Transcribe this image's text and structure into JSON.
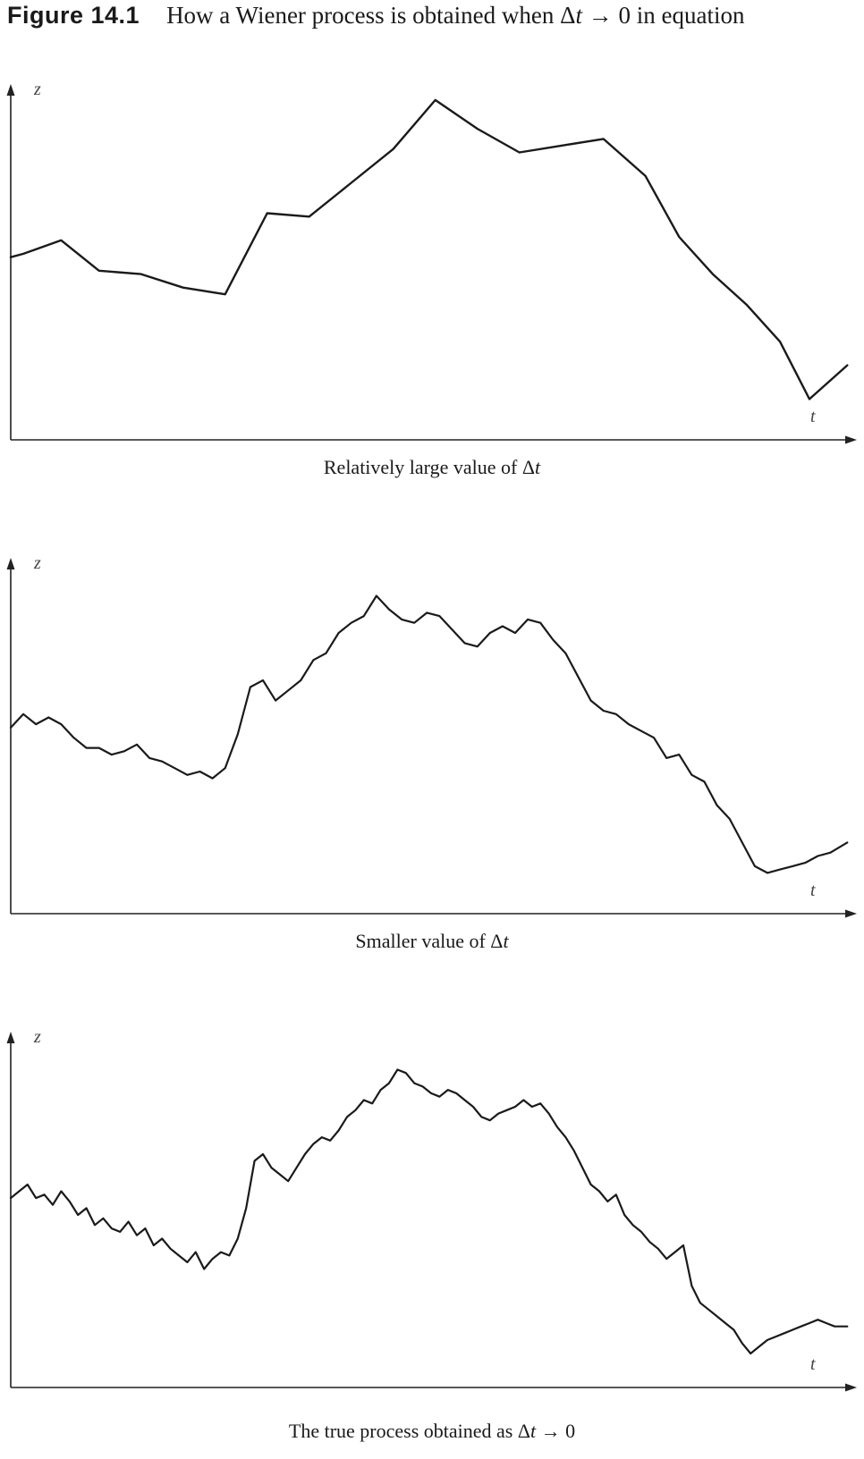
{
  "figure": {
    "label": "Figure 14.1",
    "title_prefix": "How a Wiener process is obtained when Δ",
    "title_var": "t",
    "title_suffix": " → 0 in equation"
  },
  "chart_data": [
    {
      "type": "line",
      "xlabel": "t",
      "ylabel": "z",
      "caption": {
        "text": "Relatively large value of Δ",
        "var": "t",
        "suffix": ""
      },
      "xlim": [
        0,
        100
      ],
      "ylim": [
        0,
        100
      ],
      "series": [
        {
          "x": [
            0,
            1.5,
            6,
            10.5,
            15.5,
            20.5,
            25.5,
            30.5,
            35.5,
            40.5,
            45.5,
            50.5,
            55.5,
            60.5,
            65.5,
            70.5,
            75.5,
            79.5,
            83.5,
            87.5,
            91.5,
            95,
            99.5
          ],
          "y": [
            53,
            54,
            58,
            49,
            48,
            44,
            42,
            66,
            65,
            75,
            85,
            99.5,
            91,
            84,
            86,
            88,
            77,
            59,
            48,
            39,
            28,
            11,
            21
          ]
        }
      ]
    },
    {
      "type": "line",
      "xlabel": "t",
      "ylabel": "z",
      "caption": {
        "text": "Smaller value of Δ",
        "var": "t",
        "suffix": ""
      },
      "xlim": [
        0,
        100
      ],
      "ylim": [
        0,
        100
      ],
      "series": [
        {
          "x": [
            0,
            1.5,
            3,
            4.5,
            6,
            7.5,
            9,
            10.5,
            12,
            13.5,
            15,
            16.5,
            18,
            19.5,
            21,
            22.5,
            24,
            25.5,
            27,
            28.5,
            30,
            31.5,
            33,
            34.5,
            36,
            37.5,
            39,
            40.5,
            42,
            43.5,
            45,
            46.5,
            48,
            49.5,
            51,
            52.5,
            54,
            55.5,
            57,
            58.5,
            60,
            61.5,
            63,
            64.5,
            66,
            67.5,
            69,
            70.5,
            72,
            73.5,
            75,
            76.5,
            78,
            79.5,
            81,
            82.5,
            84,
            85.5,
            87,
            88.5,
            90,
            91.5,
            93,
            94.5,
            96,
            97.5,
            99.5
          ],
          "y": [
            54,
            58,
            55,
            57,
            55,
            51,
            48,
            48,
            46,
            47,
            49,
            45,
            44,
            42,
            40,
            41,
            39,
            42,
            52,
            66,
            68,
            62,
            65,
            68,
            74,
            76,
            82,
            85,
            87,
            93,
            89,
            86,
            85,
            88,
            87,
            83,
            79,
            78,
            82,
            84,
            82,
            86,
            85,
            80,
            76,
            69,
            62,
            59,
            58,
            55,
            53,
            51,
            45,
            46,
            40,
            38,
            31,
            27,
            20,
            13,
            11,
            12,
            13,
            14,
            16,
            17,
            20
          ]
        }
      ]
    },
    {
      "type": "line",
      "xlabel": "t",
      "ylabel": "z",
      "caption": {
        "text": "The true process obtained as Δ",
        "var": "t",
        "suffix": " → 0"
      },
      "xlim": [
        0,
        100
      ],
      "ylim": [
        0,
        100
      ],
      "series": [
        {
          "x": [
            0,
            1,
            2,
            3,
            4,
            5,
            6,
            7,
            8,
            9,
            10,
            11,
            12,
            13,
            14,
            15,
            16,
            17,
            18,
            19,
            20,
            21,
            22,
            23,
            24,
            25,
            26,
            27,
            28,
            29,
            30,
            31,
            32,
            33,
            34,
            35,
            36,
            37,
            38,
            39,
            40,
            41,
            42,
            43,
            44,
            45,
            46,
            47,
            48,
            49,
            50,
            51,
            52,
            53,
            54,
            55,
            56,
            57,
            58,
            59,
            60,
            61,
            62,
            63,
            64,
            65,
            66,
            67,
            68,
            69,
            70,
            71,
            72,
            73,
            74,
            75,
            76,
            77,
            78,
            79,
            80,
            81,
            82,
            83,
            84,
            85,
            86,
            87,
            88,
            89,
            90,
            91,
            92,
            93,
            94,
            95,
            96,
            97,
            98,
            99,
            99.5
          ],
          "y": [
            55,
            57,
            59,
            55,
            56,
            53,
            57,
            54,
            50,
            52,
            47,
            49,
            46,
            45,
            48,
            44,
            46,
            41,
            43,
            40,
            38,
            36,
            39,
            34,
            37,
            39,
            38,
            43,
            52,
            66,
            68,
            64,
            62,
            60,
            64,
            68,
            71,
            73,
            72,
            75,
            79,
            81,
            84,
            83,
            87,
            89,
            93,
            92,
            89,
            88,
            86,
            85,
            87,
            86,
            84,
            82,
            79,
            78,
            80,
            81,
            82,
            84,
            82,
            83,
            80,
            76,
            73,
            69,
            64,
            59,
            57,
            54,
            56,
            50,
            47,
            45,
            42,
            40,
            37,
            39,
            41,
            29,
            24,
            22,
            20,
            18,
            16,
            12,
            9,
            11,
            13,
            14,
            15,
            16,
            17,
            18,
            19,
            18,
            17,
            17,
            17
          ]
        }
      ]
    }
  ]
}
